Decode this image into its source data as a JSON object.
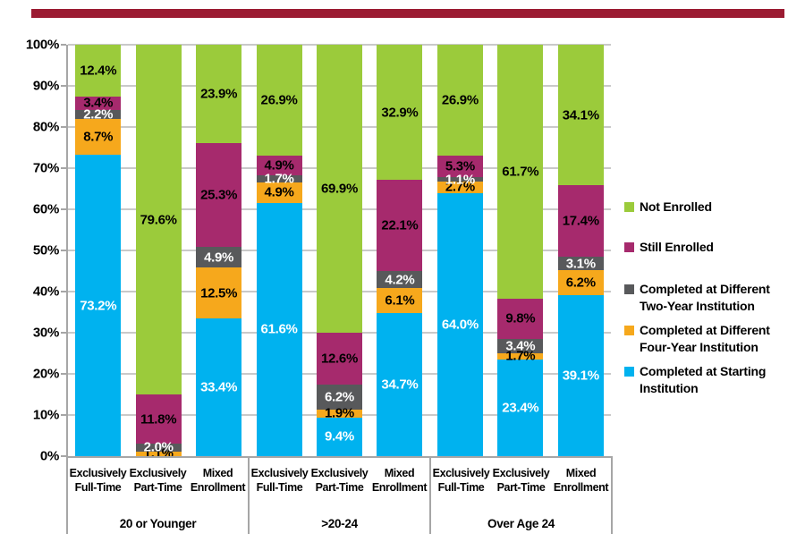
{
  "page": {
    "background": "#FFFFFF",
    "top_rule_color": "#9B1B32"
  },
  "chart_data": {
    "type": "stacked-bar-100",
    "title": "",
    "xlabel": "",
    "ylabel": "",
    "grid": true,
    "legend_position": "right",
    "y_axis": {
      "min": 0,
      "max": 100,
      "ticks": [
        "0%",
        "10%",
        "20%",
        "30%",
        "40%",
        "50%",
        "60%",
        "70%",
        "80%",
        "90%",
        "100%"
      ]
    },
    "colors": {
      "gridline": "#C9C9C9",
      "axis": "#A6A6A6"
    },
    "series": [
      {
        "key": "completed_starting",
        "name": "Completed at Starting Institution",
        "color": "#00B2EF",
        "label_color": "#FFFFFF"
      },
      {
        "key": "completed_four_year",
        "name": "Completed at Different Four-Year Institution",
        "color": "#F6A81C",
        "label_color": "#000000"
      },
      {
        "key": "completed_two_year",
        "name": "Completed at Different Two-Year Institution",
        "color": "#58595B",
        "label_color": "#FFFFFF"
      },
      {
        "key": "still_enrolled",
        "name": "Still Enrolled",
        "color": "#A62A6D",
        "label_color": "#000000"
      },
      {
        "key": "not_enrolled",
        "name": "Not Enrolled",
        "color": "#9BCB3B",
        "label_color": "#000000"
      }
    ],
    "legend_order": [
      4,
      3,
      2,
      1,
      0
    ],
    "groups": [
      {
        "label": "20 or Younger",
        "bars": [
          {
            "label_lines": [
              "Exclusively",
              "Full-Time"
            ],
            "values": [
              73.2,
              8.7,
              2.2,
              3.4,
              12.4
            ]
          },
          {
            "label_lines": [
              "Exclusively",
              "Part-Time"
            ],
            "values": [
              null,
              1.1,
              2.0,
              11.8,
              79.6
            ]
          },
          {
            "label_lines": [
              "Mixed",
              "Enrollment"
            ],
            "values": [
              33.4,
              12.5,
              4.9,
              25.3,
              23.9
            ]
          }
        ]
      },
      {
        "label": ">20-24",
        "bars": [
          {
            "label_lines": [
              "Exclusively",
              "Full-Time"
            ],
            "values": [
              61.6,
              4.9,
              1.7,
              4.9,
              26.9
            ]
          },
          {
            "label_lines": [
              "Exclusively",
              "Part-Time"
            ],
            "values": [
              9.4,
              1.9,
              6.2,
              12.6,
              69.9
            ]
          },
          {
            "label_lines": [
              "Mixed",
              "Enrollment"
            ],
            "values": [
              34.7,
              6.1,
              4.2,
              22.1,
              32.9
            ]
          }
        ]
      },
      {
        "label": "Over Age 24",
        "bars": [
          {
            "label_lines": [
              "Exclusively",
              "Full-Time"
            ],
            "values": [
              64.0,
              2.7,
              1.1,
              5.3,
              26.9
            ]
          },
          {
            "label_lines": [
              "Exclusively",
              "Part-Time"
            ],
            "values": [
              23.4,
              1.7,
              3.4,
              9.8,
              61.7
            ]
          },
          {
            "label_lines": [
              "Mixed",
              "Enrollment"
            ],
            "values": [
              39.1,
              6.2,
              3.1,
              17.4,
              34.1
            ]
          }
        ]
      }
    ]
  }
}
